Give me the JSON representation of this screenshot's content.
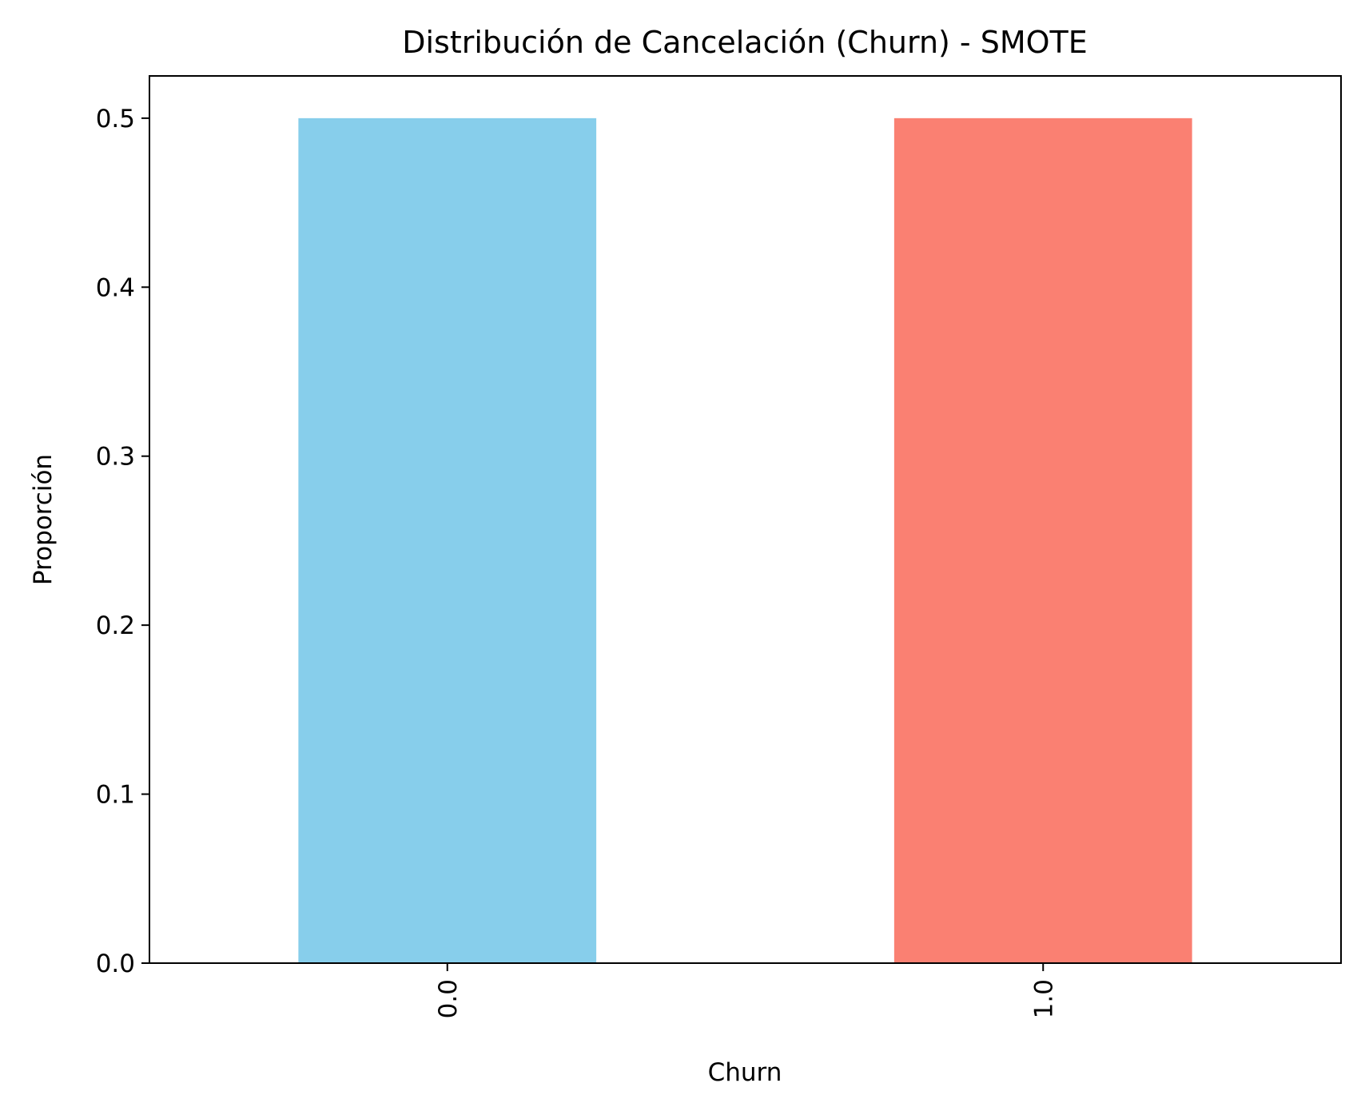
{
  "chart_data": {
    "type": "bar",
    "title": "Distribución de Cancelación (Churn) - SMOTE",
    "xlabel": "Churn",
    "ylabel": "Proporción",
    "categories": [
      "0.0",
      "1.0"
    ],
    "values": [
      0.5,
      0.5
    ],
    "colors": [
      "#87CEEB",
      "#FA8072"
    ],
    "ylim": [
      0,
      0.525
    ],
    "yticks": [
      0.0,
      0.1,
      0.2,
      0.3,
      0.4,
      0.5
    ],
    "ytick_labels": [
      "0.0",
      "0.1",
      "0.2",
      "0.3",
      "0.4",
      "0.5"
    ],
    "xtick_rotation": "vertical",
    "grid": false,
    "legend": "none"
  }
}
